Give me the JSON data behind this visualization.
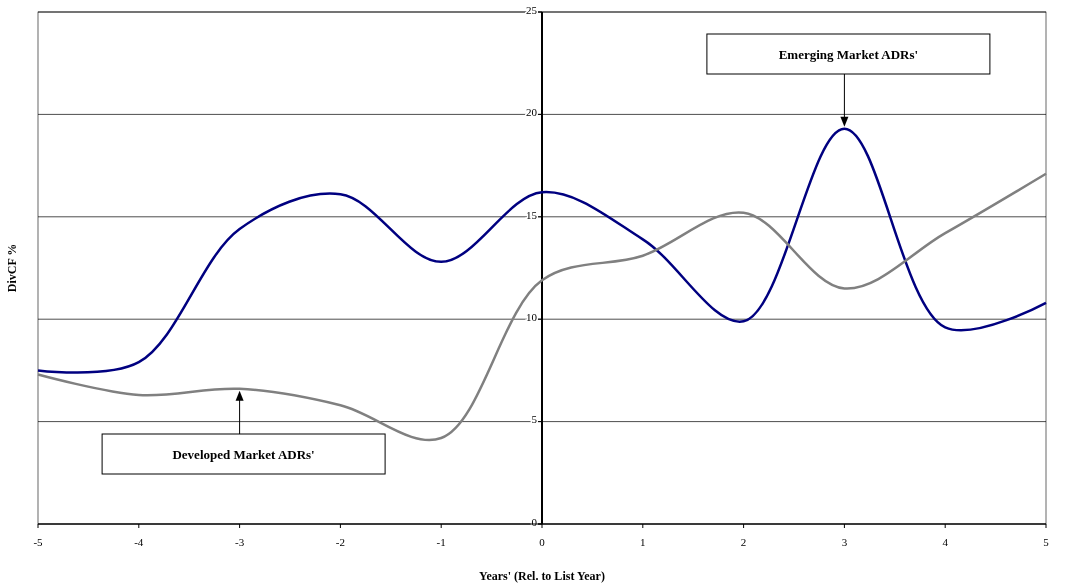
{
  "chart_data": {
    "type": "line",
    "xlabel": "Years' (Rel. to List Year)",
    "ylabel": "DivCF %",
    "x": [
      -5,
      -4,
      -3,
      -2,
      -1,
      0,
      1,
      2,
      3,
      4,
      5
    ],
    "series": [
      {
        "color": "#000080",
        "values": [
          7.5,
          7.9,
          14.4,
          16.1,
          12.8,
          16.2,
          13.9,
          9.9,
          19.3,
          9.6,
          10.8
        ]
      },
      {
        "color": "#808080",
        "values": [
          7.3,
          6.3,
          6.6,
          5.8,
          4.2,
          11.9,
          13.1,
          15.2,
          11.5,
          14.2,
          17.1
        ]
      }
    ],
    "xlim": [
      -5,
      5
    ],
    "xticks": [
      -5,
      -4,
      -3,
      -2,
      -1,
      0,
      1,
      2,
      3,
      4,
      5
    ],
    "ylim": [
      0,
      25
    ],
    "yticks": [
      0,
      5,
      10,
      15,
      20,
      25
    ],
    "grid": "y",
    "marker": "none",
    "line_style": "solid",
    "annotations": [
      "Emerging Market ADRs'",
      "Developed Market ADRs'"
    ]
  }
}
